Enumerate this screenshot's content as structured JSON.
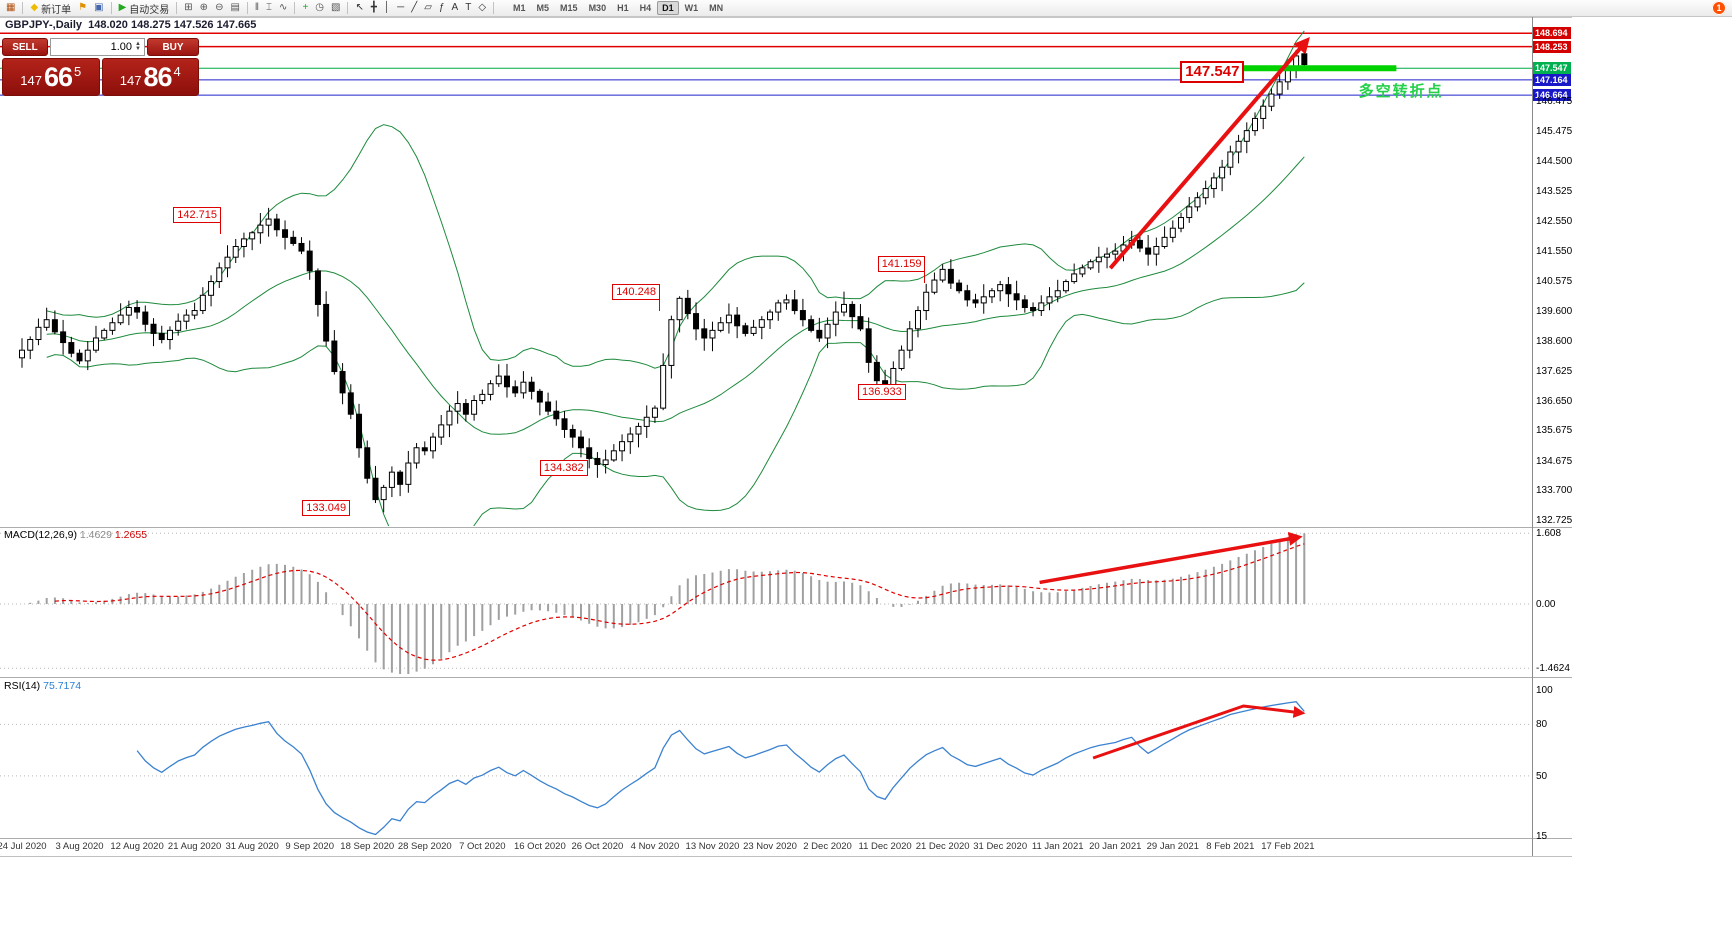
{
  "quote_line": "GBPJPY-,Daily  148.020 148.275 147.526 147.665",
  "toolbar": {
    "notification": "1",
    "timeframes": [
      "M1",
      "M5",
      "M15",
      "M30",
      "H1",
      "H4",
      "D1",
      "W1",
      "MN"
    ],
    "active_timeframe": "D1",
    "items": [
      {
        "type": "icon",
        "name": "new-chart-icon",
        "glyph": "▦",
        "color": "#b05010"
      },
      {
        "type": "sep"
      },
      {
        "type": "button",
        "name": "new-order-button",
        "icon": "new-order-icon",
        "glyph": "◆",
        "color": "#eebb00",
        "label": "新订单"
      },
      {
        "type": "icon",
        "name": "alerts-icon",
        "glyph": "⚑",
        "color": "#e09000"
      },
      {
        "type": "icon",
        "name": "mailbox-icon",
        "glyph": "▣",
        "color": "#4466aa"
      },
      {
        "type": "sep"
      },
      {
        "type": "button",
        "name": "autotrading-button",
        "icon": "autotrading-play-icon",
        "glyph": "▶",
        "color": "#22aa22",
        "label": "自动交易"
      },
      {
        "type": "sep"
      },
      {
        "type": "icon",
        "name": "tile-windows-icon",
        "glyph": "⊞",
        "color": "#555555"
      },
      {
        "type": "icon",
        "name": "zoom-in-icon",
        "glyph": "⊕",
        "color": "#555555"
      },
      {
        "type": "icon",
        "name": "zoom-out-icon",
        "glyph": "⊖",
        "color": "#555555"
      },
      {
        "type": "icon",
        "name": "auto-arrange-icon",
        "glyph": "▤",
        "color": "#555555"
      },
      {
        "type": "sep"
      },
      {
        "type": "icon",
        "name": "bar-chart-icon",
        "glyph": "‖",
        "color": "#555555"
      },
      {
        "type": "icon",
        "name": "candlestick-chart-icon",
        "glyph": "⌶",
        "color": "#555555"
      },
      {
        "type": "icon",
        "name": "line-chart-icon",
        "glyph": "∿",
        "color": "#555555"
      },
      {
        "type": "sep"
      },
      {
        "type": "icon",
        "name": "indicators-icon",
        "glyph": "+",
        "color": "#22aa22"
      },
      {
        "type": "icon",
        "name": "periods-icon",
        "glyph": "◷",
        "color": "#555555"
      },
      {
        "type": "icon",
        "name": "templates-icon",
        "glyph": "▧",
        "color": "#555555"
      },
      {
        "type": "sep"
      },
      {
        "type": "icon",
        "name": "cursor-icon",
        "glyph": "↖",
        "color": "#333333"
      },
      {
        "type": "icon",
        "name": "crosshair-icon",
        "glyph": "╋",
        "color": "#333333"
      },
      {
        "type": "icon",
        "name": "vertical-line-icon",
        "glyph": "│",
        "color": "#333333"
      },
      {
        "type": "icon",
        "name": "horizontal-line-icon",
        "glyph": "─",
        "color": "#333333"
      },
      {
        "type": "icon",
        "name": "trendline-icon",
        "glyph": "╱",
        "color": "#333333"
      },
      {
        "type": "icon",
        "name": "channel-icon",
        "glyph": "▱",
        "color": "#333333"
      },
      {
        "type": "icon",
        "name": "fibonacci-icon",
        "glyph": "ƒ",
        "color": "#333333"
      },
      {
        "type": "icon",
        "name": "text-icon",
        "glyph": "A",
        "color": "#333333"
      },
      {
        "type": "icon",
        "name": "label-icon",
        "glyph": "T",
        "color": "#333333"
      },
      {
        "type": "icon",
        "name": "shapes-icon",
        "glyph": "◇",
        "color": "#333333"
      },
      {
        "type": "sep"
      }
    ]
  },
  "trade_panel": {
    "sell_label": "SELL",
    "buy_label": "BUY",
    "volume": "1.00",
    "bid": {
      "main": "147",
      "big": "66",
      "sup": "5"
    },
    "ask": {
      "main": "147",
      "big": "86",
      "sup": "4"
    }
  },
  "indicators": {
    "macd": {
      "name": "MACD(12,26,9)",
      "v1": "1.4629",
      "v2": "1.2655"
    },
    "rsi": {
      "name": "RSI(14)",
      "v": "75.7174"
    }
  },
  "axis": {
    "price_ticks": [
      146.475,
      145.475,
      144.5,
      143.525,
      142.55,
      141.55,
      140.575,
      139.6,
      138.6,
      137.625,
      136.65,
      135.675,
      134.675,
      133.7,
      132.725
    ],
    "macd_ticks": [
      {
        "text": "1.608",
        "v": 1.608
      },
      {
        "text": "0.00",
        "v": 0
      },
      {
        "text": "-1.4624",
        "v": -1.4624
      }
    ],
    "rsi_ticks": [
      {
        "text": "100",
        "v": 100
      },
      {
        "text": "80",
        "v": 80
      },
      {
        "text": "50",
        "v": 50
      },
      {
        "text": "15",
        "v": 15
      }
    ],
    "dates": [
      {
        "t": "24 Jul 2020",
        "i": 0
      },
      {
        "t": "3 Aug 2020",
        "i": 7
      },
      {
        "t": "12 Aug 2020",
        "i": 14
      },
      {
        "t": "21 Aug 2020",
        "i": 21
      },
      {
        "t": "31 Aug 2020",
        "i": 28
      },
      {
        "t": "9 Sep 2020",
        "i": 35
      },
      {
        "t": "18 Sep 2020",
        "i": 42
      },
      {
        "t": "28 Sep 2020",
        "i": 49
      },
      {
        "t": "7 Oct 2020",
        "i": 56
      },
      {
        "t": "16 Oct 2020",
        "i": 63
      },
      {
        "t": "26 Oct 2020",
        "i": 70
      },
      {
        "t": "4 Nov 2020",
        "i": 77
      },
      {
        "t": "13 Nov 2020",
        "i": 84
      },
      {
        "t": "23 Nov 2020",
        "i": 91
      },
      {
        "t": "2 Dec 2020",
        "i": 98
      },
      {
        "t": "11 Dec 2020",
        "i": 105
      },
      {
        "t": "21 Dec 2020",
        "i": 112
      },
      {
        "t": "31 Dec 2020",
        "i": 119
      },
      {
        "t": "11 Jan 2021",
        "i": 126
      },
      {
        "t": "20 Jan 2021",
        "i": 133
      },
      {
        "t": "29 Jan 2021",
        "i": 140
      },
      {
        "t": "8 Feb 2021",
        "i": 147
      },
      {
        "t": "17 Feb 2021",
        "i": 154
      }
    ]
  },
  "chart_data": {
    "type": "candlestick",
    "symbol": "GBPJPY-",
    "timeframe": "Daily",
    "price_axis_range": {
      "max": 148.8,
      "min": 132.6
    },
    "ohlc_last": {
      "open": 148.02,
      "high": 148.275,
      "low": 147.526,
      "close": 147.665
    },
    "closes": [
      138.3,
      138.65,
      139.05,
      139.3,
      138.9,
      138.55,
      138.2,
      137.95,
      138.3,
      138.7,
      138.95,
      139.2,
      139.45,
      139.7,
      139.55,
      139.15,
      138.85,
      138.65,
      138.95,
      139.25,
      139.45,
      139.6,
      140.1,
      140.55,
      141.0,
      141.35,
      141.7,
      141.95,
      142.15,
      142.4,
      142.6,
      142.25,
      142.0,
      141.8,
      141.55,
      140.9,
      139.8,
      138.6,
      137.6,
      136.9,
      136.2,
      135.1,
      134.1,
      133.4,
      133.8,
      134.3,
      133.9,
      134.6,
      135.1,
      135.0,
      135.45,
      135.85,
      136.3,
      136.55,
      136.2,
      136.65,
      136.85,
      137.2,
      137.45,
      137.1,
      136.9,
      137.25,
      136.95,
      136.6,
      136.3,
      136.05,
      135.7,
      135.45,
      135.1,
      134.75,
      134.55,
      134.7,
      135.0,
      135.3,
      135.55,
      135.8,
      136.1,
      136.4,
      137.8,
      139.3,
      140.0,
      139.5,
      139.0,
      138.7,
      138.95,
      139.2,
      139.45,
      139.1,
      138.85,
      139.05,
      139.3,
      139.55,
      139.85,
      139.95,
      139.6,
      139.3,
      138.95,
      138.7,
      139.15,
      139.55,
      139.8,
      139.4,
      139.0,
      137.9,
      137.3,
      137.05,
      137.7,
      138.3,
      139.0,
      139.6,
      140.2,
      140.6,
      140.95,
      140.5,
      140.25,
      139.95,
      139.85,
      140.05,
      140.25,
      140.45,
      140.15,
      139.95,
      139.7,
      139.6,
      139.85,
      140.05,
      140.25,
      140.55,
      140.8,
      141.0,
      141.2,
      141.35,
      141.45,
      141.55,
      141.75,
      141.9,
      141.65,
      141.45,
      141.7,
      142.0,
      142.3,
      142.65,
      143.0,
      143.3,
      143.6,
      143.95,
      144.3,
      144.8,
      145.15,
      145.5,
      145.9,
      146.3,
      146.7,
      147.1,
      147.5,
      147.95,
      147.665
    ],
    "bollinger": {
      "period": 20,
      "deviation": 2
    },
    "macd": {
      "fast": 12,
      "slow": 26,
      "signal": 9,
      "display_max": 1.608,
      "display_min": -1.4624
    },
    "rsi": {
      "period": 14
    },
    "levels": [
      {
        "text": "148.694",
        "price": 148.694,
        "color": "#e00000",
        "badge": "#d40000",
        "w": 1.5
      },
      {
        "text": "148.253",
        "price": 148.253,
        "color": "#e00000",
        "badge": "#d40000",
        "w": 1.5
      },
      {
        "text": "147.547",
        "price": 147.547,
        "color": "#00a844",
        "badge": "#00b050",
        "w": 1
      },
      {
        "text": "147.164",
        "price": 147.164,
        "color": "#2020cc",
        "badge": "#1818c8",
        "w": 1
      },
      {
        "text": "146.664",
        "price": 146.664,
        "color": "#2020cc",
        "badge": "#1818c8",
        "w": 1
      }
    ],
    "callouts": [
      {
        "text": "142.715",
        "i": 18.4,
        "p": 142.99,
        "dir": "down"
      },
      {
        "text": "133.049",
        "i": 34.1,
        "p": 133.38,
        "dir": "none"
      },
      {
        "text": "134.382",
        "i": 63.0,
        "p": 134.7,
        "dir": "none"
      },
      {
        "text": "140.248",
        "i": 71.8,
        "p": 140.47,
        "dir": "down"
      },
      {
        "text": "136.933",
        "i": 101.7,
        "p": 137.19,
        "dir": "none"
      },
      {
        "text": "141.159",
        "i": 104.1,
        "p": 141.39,
        "dir": "down"
      },
      {
        "text": "147.547",
        "i": 140.9,
        "p": 147.78,
        "dir": "none",
        "big": true
      }
    ],
    "green_segment": {
      "price": 147.547,
      "i1": 148.6,
      "i2": 167.2,
      "color": "#00d200",
      "thickness": 6
    },
    "cn_note": {
      "text": "多空转折点",
      "i": 162.6,
      "p": 147.15,
      "color": "#26d04a"
    },
    "arrows": {
      "main": {
        "i1": 132.4,
        "p1": 140.99,
        "i2": 156.3,
        "p2": 148.45
      },
      "macd": {
        "i1": 123.8,
        "v1": 0.49,
        "i2": 155.3,
        "v2": 1.52
      },
      "rsi": [
        [
          130.3,
          60.4
        ],
        [
          148.6,
          90.7
        ],
        [
          155.7,
          86.6
        ]
      ]
    }
  }
}
